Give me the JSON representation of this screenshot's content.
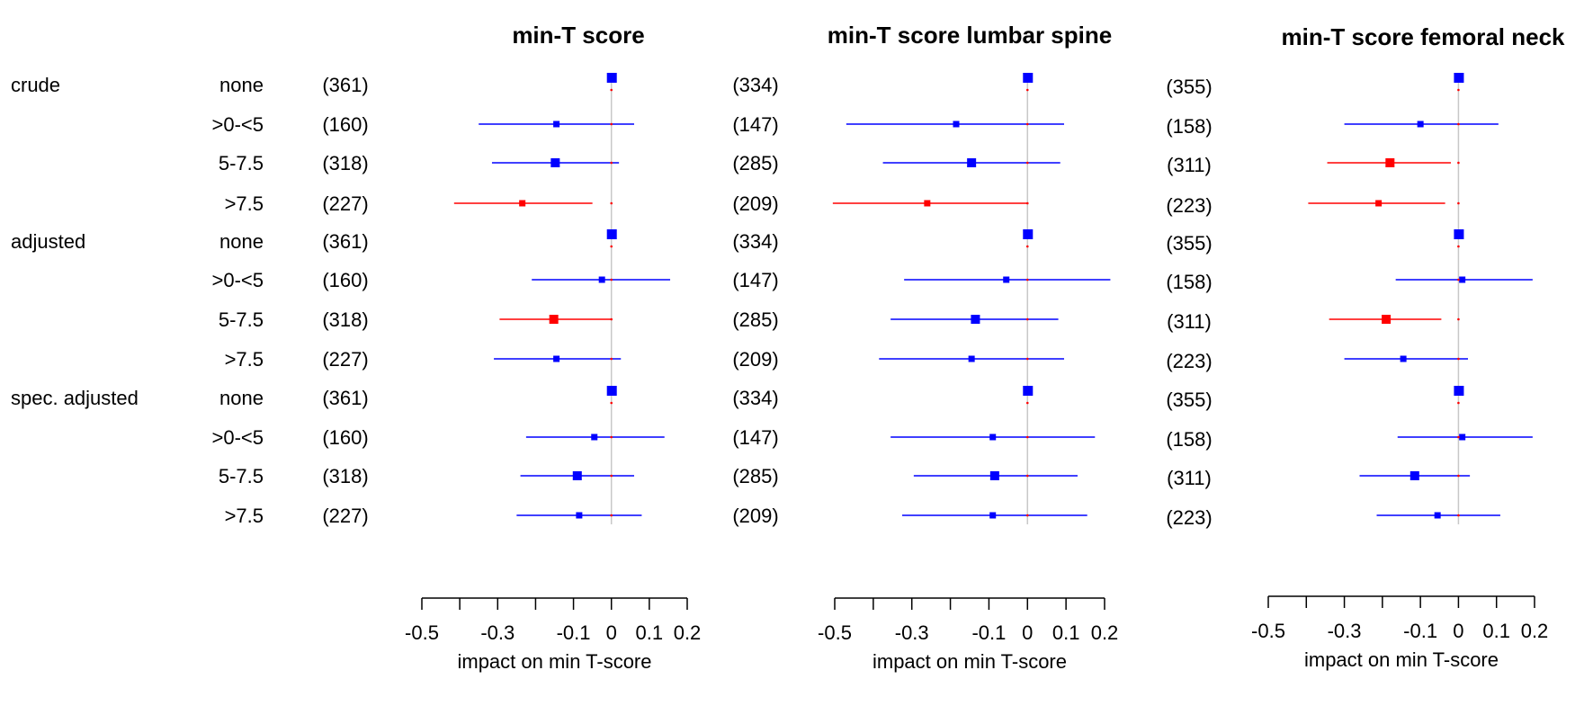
{
  "chart_data": {
    "type": "forest",
    "row_groups": [
      {
        "label": "crude",
        "levels": [
          "none",
          ">0-<5",
          "5-7.5",
          ">7.5"
        ]
      },
      {
        "label": "adjusted",
        "levels": [
          "none",
          ">0-<5",
          "5-7.5",
          ">7.5"
        ]
      },
      {
        "label": "spec. adjusted",
        "levels": [
          "none",
          ">0-<5",
          "5-7.5",
          ">7.5"
        ]
      }
    ],
    "panels": [
      {
        "title": "min-T score",
        "xlabel": "impact on min T-score",
        "xlim": [
          -0.5,
          0.2
        ],
        "ticks": [
          "-0.5",
          "-0.3",
          "-0.1",
          "0",
          "0.1",
          "0.2"
        ],
        "tick_values": [
          -0.5,
          -0.3,
          -0.1,
          0,
          0.1,
          0.2
        ],
        "counts": [
          "(361)",
          "(160)",
          "(318)",
          "(227)",
          "(361)",
          "(160)",
          "(318)",
          "(227)",
          "(361)",
          "(160)",
          "(318)",
          "(227)"
        ],
        "estimates": [
          0,
          -0.145,
          -0.148,
          -0.235,
          0,
          -0.025,
          -0.152,
          -0.145,
          0,
          -0.045,
          -0.09,
          -0.085
        ],
        "lower": [
          null,
          -0.35,
          -0.315,
          -0.415,
          null,
          -0.21,
          -0.295,
          -0.31,
          null,
          -0.225,
          -0.24,
          -0.25
        ],
        "upper": [
          null,
          0.06,
          0.02,
          -0.05,
          null,
          0.155,
          0.0,
          0.025,
          null,
          0.14,
          0.06,
          0.08
        ],
        "significant": [
          false,
          false,
          false,
          true,
          false,
          false,
          true,
          false,
          false,
          false,
          false,
          false
        ]
      },
      {
        "title": "min-T score lumbar spine",
        "xlabel": "impact on min T-score",
        "xlim": [
          -0.5,
          0.2
        ],
        "ticks": [
          "-0.5",
          "-0.3",
          "-0.1",
          "0",
          "0.1",
          "0.2"
        ],
        "tick_values": [
          -0.5,
          -0.3,
          -0.1,
          0,
          0.1,
          0.2
        ],
        "counts": [
          "(334)",
          "(147)",
          "(285)",
          "(209)",
          "(334)",
          "(147)",
          "(285)",
          "(209)",
          "(334)",
          "(147)",
          "(285)",
          "(209)"
        ],
        "estimates": [
          0,
          -0.185,
          -0.145,
          -0.26,
          0,
          -0.055,
          -0.135,
          -0.145,
          0,
          -0.09,
          -0.085,
          -0.09
        ],
        "lower": [
          null,
          -0.47,
          -0.375,
          -0.505,
          null,
          -0.32,
          -0.355,
          -0.385,
          null,
          -0.355,
          -0.295,
          -0.325
        ],
        "upper": [
          null,
          0.095,
          0.085,
          0.0,
          null,
          0.215,
          0.08,
          0.095,
          null,
          0.175,
          0.13,
          0.155
        ],
        "significant": [
          false,
          false,
          false,
          true,
          false,
          false,
          false,
          false,
          false,
          false,
          false,
          false
        ]
      },
      {
        "title": "min-T score femoral neck",
        "xlabel": "impact on min T-score",
        "xlim": [
          -0.5,
          0.2
        ],
        "ticks": [
          "-0.5",
          "-0.3",
          "-0.1",
          "0",
          "0.1",
          "0.2"
        ],
        "tick_values": [
          -0.5,
          -0.3,
          -0.1,
          0,
          0.1,
          0.2
        ],
        "counts": [
          "(355)",
          "(158)",
          "(311)",
          "(223)",
          "(355)",
          "(158)",
          "(311)",
          "(223)",
          "(355)",
          "(158)",
          "(311)",
          "(223)"
        ],
        "estimates": [
          0,
          -0.1,
          -0.18,
          -0.21,
          0,
          0.01,
          -0.19,
          -0.145,
          0,
          0.01,
          -0.115,
          -0.055
        ],
        "lower": [
          null,
          -0.3,
          -0.345,
          -0.395,
          null,
          -0.165,
          -0.34,
          -0.3,
          null,
          -0.16,
          -0.26,
          -0.215
        ],
        "upper": [
          null,
          0.105,
          -0.02,
          -0.035,
          null,
          0.195,
          -0.045,
          0.025,
          null,
          0.195,
          0.03,
          0.11
        ],
        "significant": [
          false,
          false,
          true,
          true,
          false,
          false,
          true,
          false,
          false,
          false,
          false,
          false
        ]
      }
    ],
    "colors": {
      "normal": "#0000ff",
      "significant": "#ff0000",
      "zero_line": "#c8c8c8",
      "ref_dot": "#ff0000"
    }
  }
}
